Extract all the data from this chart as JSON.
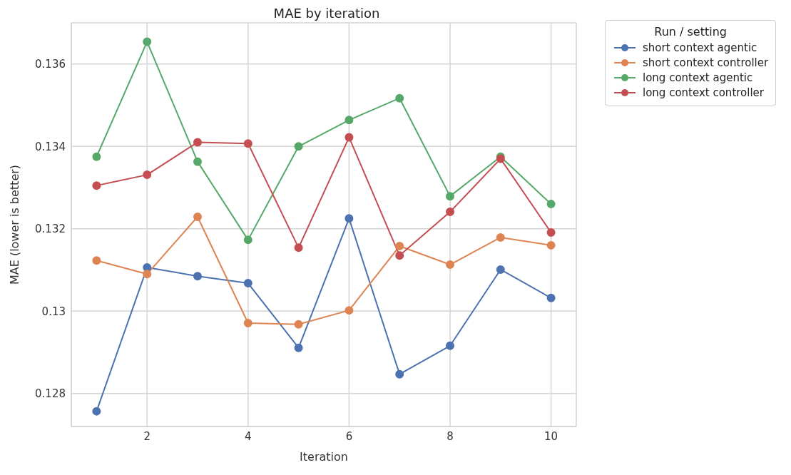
{
  "chart_data": {
    "type": "line",
    "title": "MAE by iteration",
    "xlabel": "Iteration",
    "ylabel": "MAE (lower is better)",
    "legend_title": "Run / setting",
    "x": [
      1,
      2,
      3,
      4,
      5,
      6,
      7,
      8,
      9,
      10
    ],
    "series": [
      {
        "name": "short context agentic",
        "color": "#4c72b0",
        "values": [
          0.12757,
          0.13106,
          0.13085,
          0.13068,
          0.12911,
          0.13225,
          0.12847,
          0.12916,
          0.13101,
          0.13032
        ]
      },
      {
        "name": "short context controller",
        "color": "#dd8452",
        "values": [
          0.13123,
          0.1309,
          0.13229,
          0.12971,
          0.12968,
          0.13002,
          0.13158,
          0.13113,
          0.13179,
          0.1316
        ]
      },
      {
        "name": "long context agentic",
        "color": "#55a868",
        "values": [
          0.13375,
          0.13654,
          0.13363,
          0.13173,
          0.134,
          0.13464,
          0.13517,
          0.13279,
          0.13375,
          0.1326
        ]
      },
      {
        "name": "long context controller",
        "color": "#c44e52",
        "values": [
          0.13305,
          0.13331,
          0.1341,
          0.13407,
          0.13154,
          0.13422,
          0.13135,
          0.13241,
          0.1337,
          0.13191
        ]
      }
    ],
    "xlim": [
      0.5,
      10.5
    ],
    "xticks": [
      2,
      4,
      6,
      8,
      10
    ],
    "ylim": [
      0.1272,
      0.137
    ],
    "yticks": [
      0.128,
      0.13,
      0.132,
      0.134,
      0.136
    ],
    "grid": true,
    "legend": "top right",
    "marker": "circle",
    "line_style": "solid"
  }
}
